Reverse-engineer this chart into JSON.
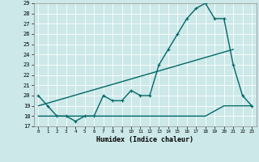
{
  "xlabel": "Humidex (Indice chaleur)",
  "bg_color": "#cce8e8",
  "line_color": "#006868",
  "x_min": 0,
  "x_max": 23,
  "y_min": 17,
  "y_max": 29,
  "series1_x": [
    0,
    1,
    2,
    3,
    4,
    5,
    6,
    7,
    8,
    9,
    10,
    11,
    12,
    13,
    14,
    15,
    16,
    17,
    18,
    19,
    20,
    21,
    22,
    23
  ],
  "series1_y": [
    20,
    19,
    18,
    18,
    17.5,
    18,
    18,
    20,
    19.5,
    19.5,
    20.5,
    20,
    20,
    23,
    24.5,
    26,
    27.5,
    28.5,
    29,
    27.5,
    27.5,
    23,
    20,
    19
  ],
  "series2_x": [
    0,
    1,
    2,
    3,
    4,
    5,
    6,
    7,
    8,
    9,
    10,
    11,
    12,
    13,
    14,
    15,
    16,
    17,
    18,
    19,
    20,
    21,
    22,
    23
  ],
  "series2_y": [
    18,
    18,
    18,
    18,
    18,
    18,
    18,
    18,
    18,
    18,
    18,
    18,
    18,
    18,
    18,
    18,
    18,
    18,
    18,
    18.5,
    19,
    19,
    19,
    19
  ],
  "series3_x": [
    0,
    21
  ],
  "series3_y": [
    19,
    24.5
  ],
  "ytick_labels": [
    "17",
    "18",
    "19",
    "20",
    "21",
    "22",
    "23",
    "24",
    "25",
    "26",
    "27",
    "28",
    "29"
  ],
  "xtick_labels": [
    "0",
    "1",
    "2",
    "3",
    "4",
    "5",
    "6",
    "7",
    "8",
    "9",
    "10",
    "11",
    "12",
    "13",
    "14",
    "15",
    "16",
    "17",
    "18",
    "19",
    "20",
    "21",
    "22",
    "23"
  ]
}
